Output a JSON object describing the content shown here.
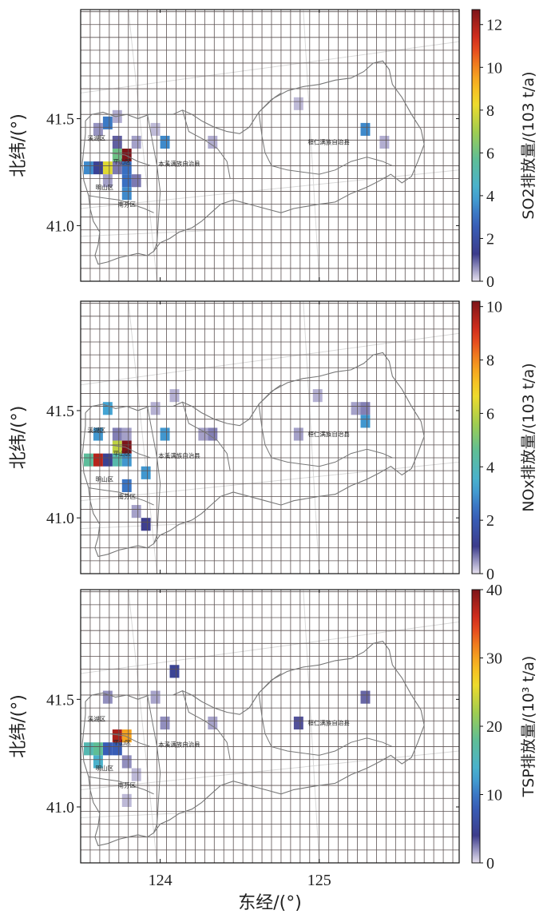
{
  "figure": {
    "ylabel": "北纬/(°)",
    "xlabel": "东经/(°)",
    "x_ticks": [
      "124",
      "125"
    ],
    "y_ticks": [
      "41.0",
      "41.5"
    ]
  },
  "chart_data": [
    {
      "type": "heatmap",
      "title": "",
      "xlabel": "东经/(°)",
      "ylabel": "北纬/(°)",
      "xlim": [
        123.5,
        125.88
      ],
      "ylim": [
        40.74,
        42.01
      ],
      "grid_cell_deg": 0.06,
      "colorbar": {
        "label": "SO2排放量/(103 t/a)",
        "min": 0,
        "max": 12.7,
        "ticks": [
          "0",
          "2",
          "4",
          "6",
          "8",
          "10",
          "12"
        ],
        "tick_values": [
          0,
          2,
          4,
          6,
          8,
          10,
          12
        ]
      },
      "region_labels": [
        {
          "text": "平山区",
          "lon": 123.76,
          "lat": 41.29
        },
        {
          "text": "明山区",
          "lon": 123.65,
          "lat": 41.17
        },
        {
          "text": "南芬区",
          "lon": 123.79,
          "lat": 41.09
        },
        {
          "text": "溪湖区",
          "lon": 123.6,
          "lat": 41.4
        },
        {
          "text": "本溪满族自治县",
          "lon": 124.12,
          "lat": 41.28
        },
        {
          "text": "桓仁满族自治县",
          "lon": 125.06,
          "lat": 41.38
        }
      ],
      "cells": [
        {
          "lon": 123.64,
          "lat": 41.45,
          "value": 3.2
        },
        {
          "lon": 123.7,
          "lat": 41.48,
          "value": 0.4
        },
        {
          "lon": 123.58,
          "lat": 41.42,
          "value": 0.6
        },
        {
          "lon": 123.7,
          "lat": 41.36,
          "value": 1.0
        },
        {
          "lon": 123.7,
          "lat": 41.3,
          "value": 6.0
        },
        {
          "lon": 123.7,
          "lat": 41.24,
          "value": 0.8
        },
        {
          "lon": 123.76,
          "lat": 41.3,
          "value": 12.7
        },
        {
          "lon": 123.76,
          "lat": 41.24,
          "value": 3.0
        },
        {
          "lon": 123.64,
          "lat": 41.24,
          "value": 8.0
        },
        {
          "lon": 123.58,
          "lat": 41.24,
          "value": 1.5
        },
        {
          "lon": 123.52,
          "lat": 41.24,
          "value": 3.5
        },
        {
          "lon": 123.64,
          "lat": 41.18,
          "value": 0.5
        },
        {
          "lon": 123.76,
          "lat": 41.18,
          "value": 3.0
        },
        {
          "lon": 123.76,
          "lat": 41.12,
          "value": 3.5
        },
        {
          "lon": 123.82,
          "lat": 41.36,
          "value": 0.5
        },
        {
          "lon": 123.82,
          "lat": 41.18,
          "value": 0.8
        },
        {
          "lon": 123.94,
          "lat": 41.42,
          "value": 0.3
        },
        {
          "lon": 124.0,
          "lat": 41.36,
          "value": 3.5
        },
        {
          "lon": 124.3,
          "lat": 41.36,
          "value": 0.4
        },
        {
          "lon": 124.84,
          "lat": 41.54,
          "value": 0.3
        },
        {
          "lon": 125.26,
          "lat": 41.42,
          "value": 3.5
        },
        {
          "lon": 125.38,
          "lat": 41.36,
          "value": 0.4
        }
      ]
    },
    {
      "type": "heatmap",
      "title": "",
      "xlabel": "东经/(°)",
      "ylabel": "北纬/(°)",
      "xlim": [
        123.5,
        125.88
      ],
      "ylim": [
        40.74,
        42.01
      ],
      "grid_cell_deg": 0.06,
      "colorbar": {
        "label": "NOx排放量/(103 t/a)",
        "min": 0,
        "max": 10.2,
        "ticks": [
          "0",
          "2",
          "4",
          "6",
          "8",
          "10"
        ],
        "tick_values": [
          0,
          2,
          4,
          6,
          8,
          10
        ]
      },
      "region_labels": [
        {
          "text": "平山区",
          "lon": 123.76,
          "lat": 41.29
        },
        {
          "text": "明山区",
          "lon": 123.65,
          "lat": 41.17
        },
        {
          "text": "南芬区",
          "lon": 123.79,
          "lat": 41.09
        },
        {
          "text": "溪湖区",
          "lon": 123.6,
          "lat": 41.4
        },
        {
          "text": "本溪满族自治县",
          "lon": 124.12,
          "lat": 41.28
        },
        {
          "text": "桓仁满族自治县",
          "lon": 125.06,
          "lat": 41.38
        }
      ],
      "cells": [
        {
          "lon": 123.64,
          "lat": 41.48,
          "value": 3.2
        },
        {
          "lon": 123.58,
          "lat": 41.36,
          "value": 3.0
        },
        {
          "lon": 123.7,
          "lat": 41.36,
          "value": 0.6
        },
        {
          "lon": 123.76,
          "lat": 41.36,
          "value": 0.4
        },
        {
          "lon": 123.7,
          "lat": 41.3,
          "value": 6.0
        },
        {
          "lon": 123.76,
          "lat": 41.3,
          "value": 10.2
        },
        {
          "lon": 123.7,
          "lat": 41.24,
          "value": 4.2
        },
        {
          "lon": 123.76,
          "lat": 41.24,
          "value": 3.0
        },
        {
          "lon": 123.64,
          "lat": 41.24,
          "value": 1.2
        },
        {
          "lon": 123.58,
          "lat": 41.24,
          "value": 9.5
        },
        {
          "lon": 123.52,
          "lat": 41.24,
          "value": 4.5
        },
        {
          "lon": 123.88,
          "lat": 41.18,
          "value": 3.0
        },
        {
          "lon": 123.76,
          "lat": 41.12,
          "value": 2.5
        },
        {
          "lon": 123.88,
          "lat": 40.94,
          "value": 1.0
        },
        {
          "lon": 123.82,
          "lat": 41.0,
          "value": 0.4
        },
        {
          "lon": 123.94,
          "lat": 41.48,
          "value": 0.3
        },
        {
          "lon": 124.06,
          "lat": 41.54,
          "value": 0.3
        },
        {
          "lon": 124.0,
          "lat": 41.36,
          "value": 3.0
        },
        {
          "lon": 124.24,
          "lat": 41.36,
          "value": 0.4
        },
        {
          "lon": 124.3,
          "lat": 41.36,
          "value": 0.6
        },
        {
          "lon": 124.84,
          "lat": 41.36,
          "value": 0.4
        },
        {
          "lon": 124.96,
          "lat": 41.54,
          "value": 0.3
        },
        {
          "lon": 125.2,
          "lat": 41.48,
          "value": 0.4
        },
        {
          "lon": 125.26,
          "lat": 41.48,
          "value": 0.6
        },
        {
          "lon": 125.26,
          "lat": 41.42,
          "value": 3.0
        }
      ]
    },
    {
      "type": "heatmap",
      "title": "",
      "xlabel": "东经/(°)",
      "ylabel": "北纬/(°)",
      "xlim": [
        123.5,
        125.88
      ],
      "ylim": [
        40.74,
        42.01
      ],
      "grid_cell_deg": 0.06,
      "colorbar": {
        "label": "TSP排放量/(10³ t/a)",
        "min": 0,
        "max": 40,
        "ticks": [
          "0",
          "10",
          "20",
          "30",
          "40"
        ],
        "tick_values": [
          0,
          10,
          20,
          30,
          40
        ]
      },
      "region_labels": [
        {
          "text": "平山区",
          "lon": 123.76,
          "lat": 41.29
        },
        {
          "text": "明山区",
          "lon": 123.65,
          "lat": 41.17
        },
        {
          "text": "南芬区",
          "lon": 123.79,
          "lat": 41.09
        },
        {
          "text": "溪湖区",
          "lon": 123.6,
          "lat": 41.4
        },
        {
          "text": "本溪满族自治县",
          "lon": 124.12,
          "lat": 41.28
        },
        {
          "text": "桓仁满族自治县",
          "lon": 125.06,
          "lat": 41.38
        }
      ],
      "cells": [
        {
          "lon": 123.64,
          "lat": 41.48,
          "value": 2.0
        },
        {
          "lon": 123.7,
          "lat": 41.3,
          "value": 38.0
        },
        {
          "lon": 123.76,
          "lat": 41.3,
          "value": 30.0
        },
        {
          "lon": 123.7,
          "lat": 41.24,
          "value": 8.0
        },
        {
          "lon": 123.64,
          "lat": 41.24,
          "value": 8.0
        },
        {
          "lon": 123.58,
          "lat": 41.24,
          "value": 18.0
        },
        {
          "lon": 123.52,
          "lat": 41.24,
          "value": 16.0
        },
        {
          "lon": 123.58,
          "lat": 41.18,
          "value": 14.0
        },
        {
          "lon": 123.76,
          "lat": 41.18,
          "value": 2.0
        },
        {
          "lon": 123.82,
          "lat": 41.12,
          "value": 1.0
        },
        {
          "lon": 123.76,
          "lat": 41.0,
          "value": 1.0
        },
        {
          "lon": 123.94,
          "lat": 41.48,
          "value": 1.5
        },
        {
          "lon": 124.06,
          "lat": 41.6,
          "value": 5.0
        },
        {
          "lon": 124.0,
          "lat": 41.36,
          "value": 2.0
        },
        {
          "lon": 124.3,
          "lat": 41.36,
          "value": 1.5
        },
        {
          "lon": 124.84,
          "lat": 41.36,
          "value": 3.5
        },
        {
          "lon": 125.26,
          "lat": 41.48,
          "value": 3.0
        }
      ]
    }
  ]
}
